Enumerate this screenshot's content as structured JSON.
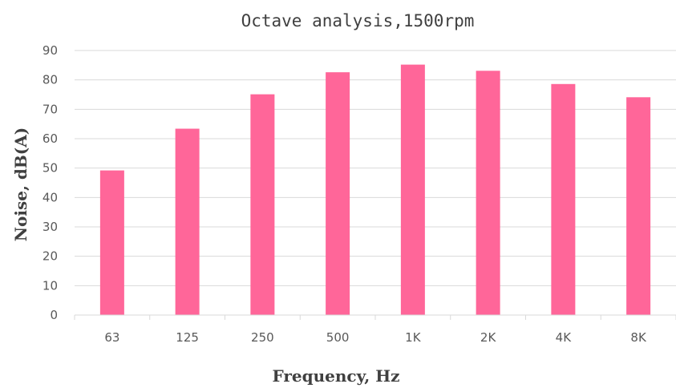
{
  "chart_data": {
    "type": "bar",
    "title": "Octave analysis,1500rpm",
    "xlabel": "Frequency, Hz",
    "ylabel": "Noise, dB(A)",
    "categories": [
      "63",
      "125",
      "250",
      "500",
      "1K",
      "2K",
      "4K",
      "8K"
    ],
    "values": [
      49.2,
      63.4,
      75.1,
      82.6,
      85.2,
      83.1,
      78.6,
      74.1
    ],
    "ylim": [
      0,
      90
    ],
    "yticks": [
      0,
      10,
      20,
      30,
      40,
      50,
      60,
      70,
      80,
      90
    ],
    "grid": true,
    "legend": "none",
    "bar_color": "#FF6699",
    "grid_color": "#D9D9D9"
  }
}
